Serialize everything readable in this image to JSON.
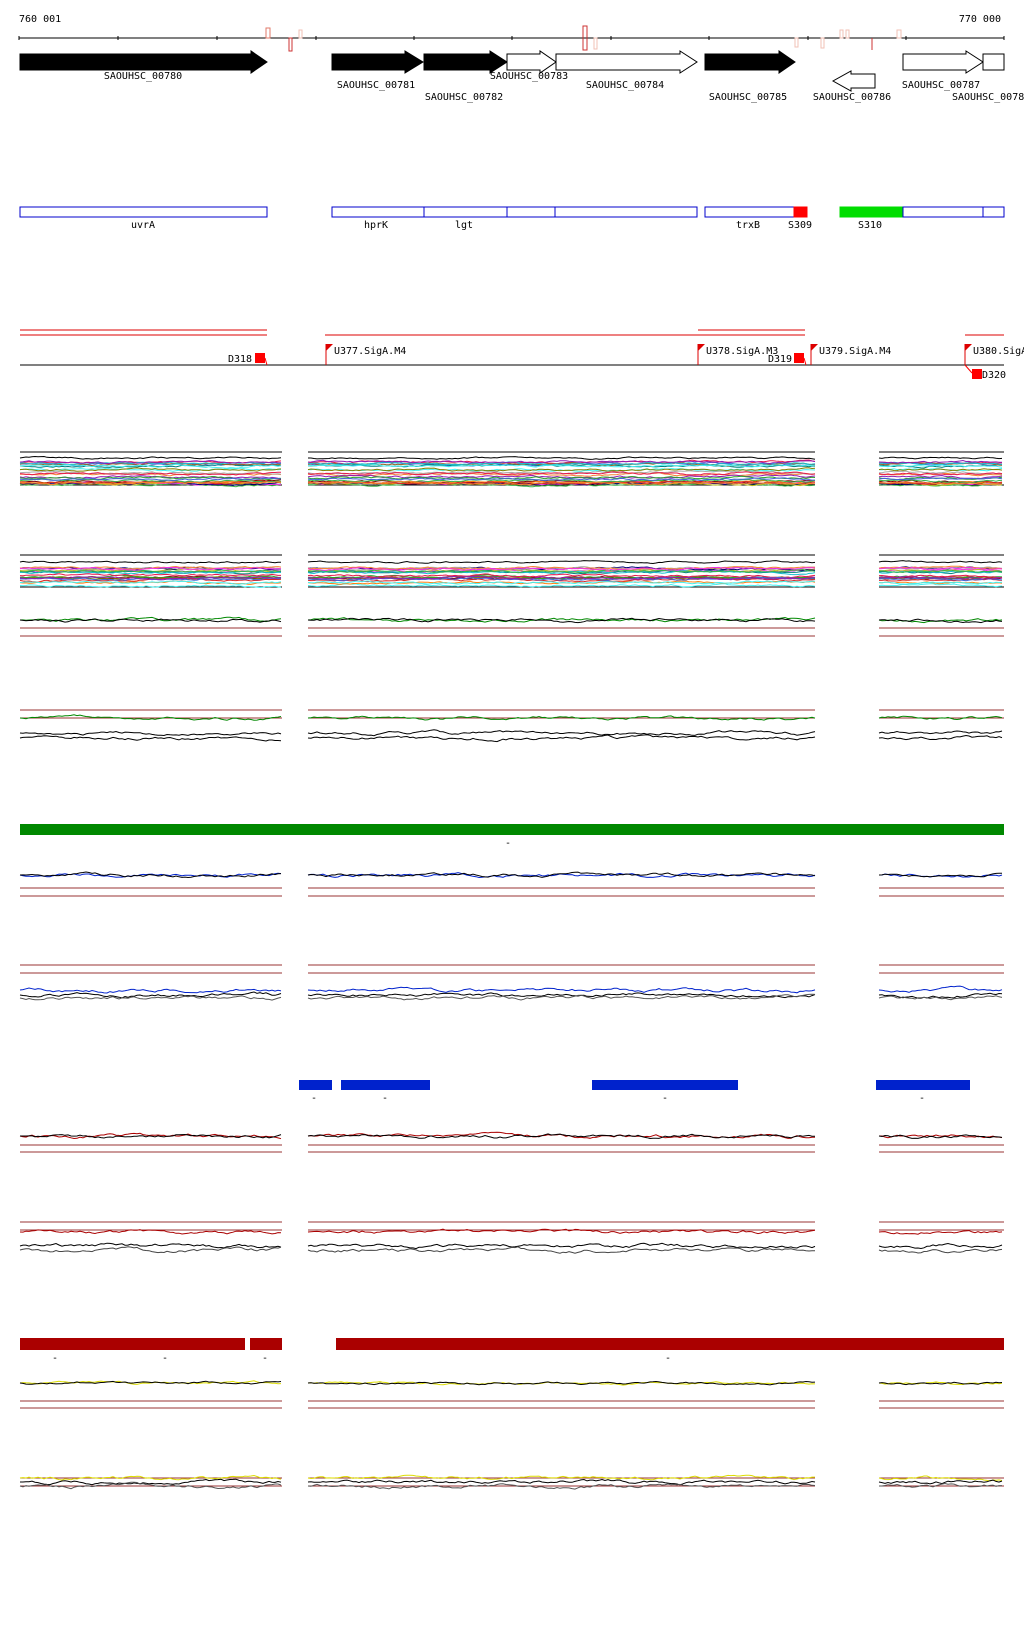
{
  "scale": {
    "start": "760 001",
    "end": "770 000"
  },
  "genes": [
    {
      "id": "SAOUHSC_00780",
      "strand": "+",
      "fill": "black"
    },
    {
      "id": "SAOUHSC_00781",
      "strand": "+",
      "fill": "black"
    },
    {
      "id": "SAOUHSC_00782",
      "strand": "+",
      "fill": "black"
    },
    {
      "id": "SAOUHSC_00783",
      "strand": "+",
      "fill": "white"
    },
    {
      "id": "SAOUHSC_00784",
      "strand": "+",
      "fill": "white"
    },
    {
      "id": "SAOUHSC_00785",
      "strand": "+",
      "fill": "black"
    },
    {
      "id": "SAOUHSC_00786",
      "strand": "-",
      "fill": "white"
    },
    {
      "id": "SAOUHSC_00787",
      "strand": "+",
      "fill": "white"
    },
    {
      "id": "SAOUHSC_0078",
      "strand": "+",
      "fill": "white"
    }
  ],
  "annotations": [
    {
      "label": "uvrA",
      "kind": "gene"
    },
    {
      "label": "hprK",
      "kind": "gene"
    },
    {
      "label": "lgt",
      "kind": "gene"
    },
    {
      "label": "trxB",
      "kind": "gene"
    },
    {
      "label": "S309",
      "kind": "srna"
    },
    {
      "label": "S310",
      "kind": "srna"
    }
  ],
  "promoters": [
    {
      "label": "U377.SigA.M4"
    },
    {
      "label": "U378.SigA.M3"
    },
    {
      "label": "U379.SigA.M4"
    },
    {
      "label": "U380.SigA"
    }
  ],
  "terminators": [
    {
      "label": "D318"
    },
    {
      "label": "D319"
    },
    {
      "label": "D320"
    }
  ],
  "segment_marks": {
    "green": "-",
    "blue": "-",
    "red": "-"
  },
  "colors": {
    "gene_black": "#000000",
    "annotation_blue": "#0000cc",
    "srna_red": "#ff0000",
    "srna_green": "#00dd00",
    "promoter_red": "#dd0000",
    "cond_green": "#008800",
    "cond_blue": "#0022cc",
    "cond_red": "#aa0000",
    "cond_yellow": "#dddd00",
    "threshold": "#993333"
  }
}
